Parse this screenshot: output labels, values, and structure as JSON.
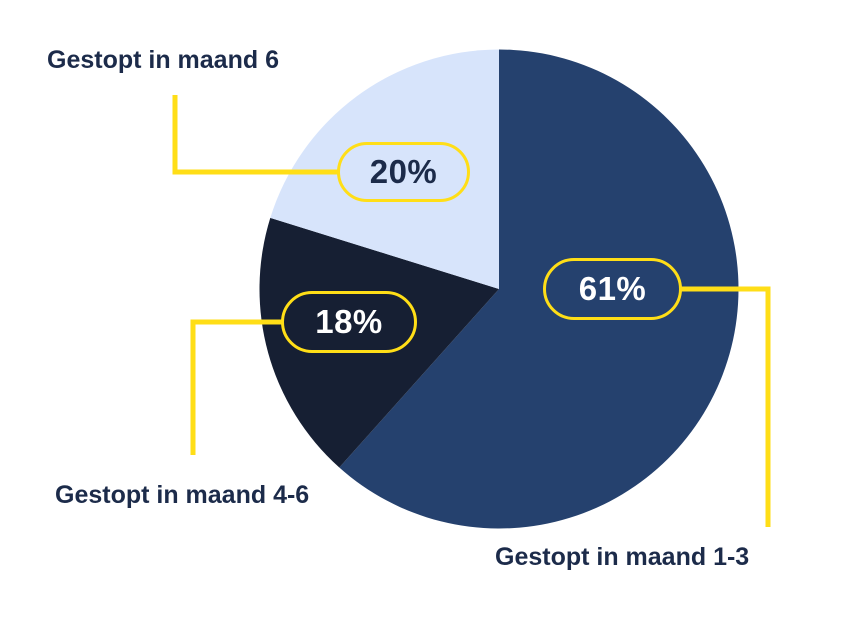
{
  "figure": {
    "background": "#FFFFFF"
  },
  "chart_data": {
    "type": "pie",
    "unit": "%",
    "direction": "clockwise",
    "start_angle_deg": 0,
    "legend_position": "callout-labels",
    "accent_color": "#FFDE17",
    "label_color": "#1C2B4A",
    "slices": [
      {
        "label": "Gestopt in maand 1-3",
        "value": 61,
        "percent_label": "61%",
        "color": "#25416E",
        "badge_text_color": "#FFFFFF"
      },
      {
        "label": "Gestopt in maand 4-6",
        "value": 18,
        "percent_label": "18%",
        "color": "#161F33",
        "badge_text_color": "#FFFFFF"
      },
      {
        "label": "Gestopt in maand 6",
        "value": 20,
        "percent_label": "20%",
        "color": "#D7E4FB",
        "badge_text_color": "#1C2B4A"
      }
    ]
  }
}
